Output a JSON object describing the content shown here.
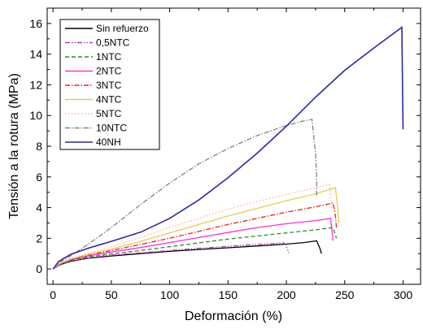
{
  "chart_data": {
    "type": "line",
    "title": "",
    "xlabel": "Deformación (%)",
    "ylabel": "Tensión a la rotura (MPa)",
    "xlim": [
      -5,
      315
    ],
    "ylim": [
      -1,
      17
    ],
    "xticks": [
      "0",
      "50",
      "100",
      "150",
      "200",
      "250",
      "300"
    ],
    "yticks": [
      "0",
      "2",
      "4",
      "6",
      "8",
      "10",
      "12",
      "14",
      "16"
    ],
    "legend_position": "top-left",
    "grid": false,
    "series": [
      {
        "name": "Sin refuerzo",
        "color": "#000000",
        "dash": "solid",
        "points": [
          [
            0,
            0
          ],
          [
            5,
            0.25
          ],
          [
            15,
            0.5
          ],
          [
            30,
            0.7
          ],
          [
            50,
            0.85
          ],
          [
            75,
            1.0
          ],
          [
            100,
            1.15
          ],
          [
            125,
            1.27
          ],
          [
            150,
            1.38
          ],
          [
            175,
            1.5
          ],
          [
            200,
            1.62
          ],
          [
            215,
            1.72
          ],
          [
            226,
            1.83
          ],
          [
            229,
            1.3
          ],
          [
            230,
            1.0
          ]
        ]
      },
      {
        "name": "0,5NTC",
        "color": "#b03cc0",
        "dash": "dashdotdot",
        "points": [
          [
            0,
            0
          ],
          [
            5,
            0.27
          ],
          [
            15,
            0.52
          ],
          [
            30,
            0.72
          ],
          [
            50,
            0.9
          ],
          [
            75,
            1.05
          ],
          [
            100,
            1.2
          ],
          [
            125,
            1.35
          ],
          [
            150,
            1.48
          ],
          [
            175,
            1.6
          ],
          [
            198,
            1.7
          ],
          [
            201,
            1.3
          ],
          [
            202,
            1.05
          ]
        ]
      },
      {
        "name": "1NTC",
        "color": "#2e8b2e",
        "dash": "dash",
        "points": [
          [
            0,
            0
          ],
          [
            5,
            0.28
          ],
          [
            15,
            0.55
          ],
          [
            30,
            0.78
          ],
          [
            50,
            0.98
          ],
          [
            75,
            1.2
          ],
          [
            100,
            1.45
          ],
          [
            125,
            1.7
          ],
          [
            150,
            1.95
          ],
          [
            175,
            2.15
          ],
          [
            200,
            2.35
          ],
          [
            225,
            2.55
          ],
          [
            240,
            2.7
          ],
          [
            242,
            2.2
          ],
          [
            243,
            2.0
          ]
        ]
      },
      {
        "name": "2NTC",
        "color": "#ff2de0",
        "dash": "solid",
        "points": [
          [
            0,
            0
          ],
          [
            5,
            0.3
          ],
          [
            15,
            0.6
          ],
          [
            30,
            0.85
          ],
          [
            50,
            1.1
          ],
          [
            75,
            1.4
          ],
          [
            100,
            1.72
          ],
          [
            125,
            2.05
          ],
          [
            150,
            2.38
          ],
          [
            175,
            2.7
          ],
          [
            200,
            2.95
          ],
          [
            225,
            3.15
          ],
          [
            238,
            3.3
          ],
          [
            239,
            2.5
          ],
          [
            240,
            1.85
          ]
        ]
      },
      {
        "name": "3NTC",
        "color": "#ee2020",
        "dash": "dashdot",
        "points": [
          [
            0,
            0
          ],
          [
            5,
            0.3
          ],
          [
            15,
            0.62
          ],
          [
            30,
            0.9
          ],
          [
            50,
            1.2
          ],
          [
            75,
            1.6
          ],
          [
            100,
            2.0
          ],
          [
            125,
            2.45
          ],
          [
            150,
            2.9
          ],
          [
            175,
            3.3
          ],
          [
            200,
            3.7
          ],
          [
            225,
            4.05
          ],
          [
            240,
            4.3
          ],
          [
            242,
            3.5
          ],
          [
            243,
            2.6
          ]
        ]
      },
      {
        "name": "4NTC",
        "color": "#e0d050",
        "dash": "solid",
        "points": [
          [
            0,
            0
          ],
          [
            5,
            0.32
          ],
          [
            15,
            0.65
          ],
          [
            30,
            0.95
          ],
          [
            50,
            1.3
          ],
          [
            75,
            1.8
          ],
          [
            100,
            2.35
          ],
          [
            125,
            2.9
          ],
          [
            150,
            3.45
          ],
          [
            175,
            3.95
          ],
          [
            200,
            4.45
          ],
          [
            225,
            4.9
          ],
          [
            242,
            5.3
          ],
          [
            244,
            4.0
          ],
          [
            245,
            3.0
          ]
        ]
      },
      {
        "name": "5NTC",
        "color": "#ffb090",
        "dash": "dot",
        "points": [
          [
            0,
            0
          ],
          [
            5,
            0.33
          ],
          [
            15,
            0.68
          ],
          [
            30,
            1.0
          ],
          [
            50,
            1.45
          ],
          [
            75,
            2.05
          ],
          [
            100,
            2.7
          ],
          [
            125,
            3.3
          ],
          [
            150,
            3.9
          ],
          [
            175,
            4.4
          ],
          [
            200,
            4.85
          ],
          [
            225,
            5.3
          ],
          [
            237,
            5.5
          ],
          [
            238,
            4.6
          ],
          [
            239,
            3.8
          ]
        ]
      },
      {
        "name": "10NTC",
        "color": "#808080",
        "dash": "dashdot",
        "points": [
          [
            0,
            0
          ],
          [
            5,
            0.4
          ],
          [
            15,
            0.85
          ],
          [
            30,
            1.6
          ],
          [
            50,
            2.7
          ],
          [
            75,
            4.2
          ],
          [
            100,
            5.6
          ],
          [
            125,
            6.85
          ],
          [
            150,
            7.85
          ],
          [
            175,
            8.7
          ],
          [
            200,
            9.35
          ],
          [
            215,
            9.65
          ],
          [
            222,
            9.75
          ],
          [
            223,
            9.0
          ],
          [
            225,
            7.5
          ],
          [
            226,
            6.0
          ],
          [
            226,
            4.8
          ]
        ]
      },
      {
        "name": "40NH",
        "color": "#2a2aa0",
        "dash": "solid",
        "points": [
          [
            0,
            0
          ],
          [
            5,
            0.5
          ],
          [
            15,
            0.95
          ],
          [
            30,
            1.35
          ],
          [
            50,
            1.8
          ],
          [
            75,
            2.4
          ],
          [
            100,
            3.3
          ],
          [
            125,
            4.5
          ],
          [
            150,
            5.95
          ],
          [
            175,
            7.55
          ],
          [
            200,
            9.3
          ],
          [
            225,
            11.2
          ],
          [
            250,
            12.95
          ],
          [
            275,
            14.4
          ],
          [
            299,
            15.75
          ],
          [
            299.5,
            12.0
          ],
          [
            300,
            9.1
          ]
        ]
      }
    ]
  }
}
